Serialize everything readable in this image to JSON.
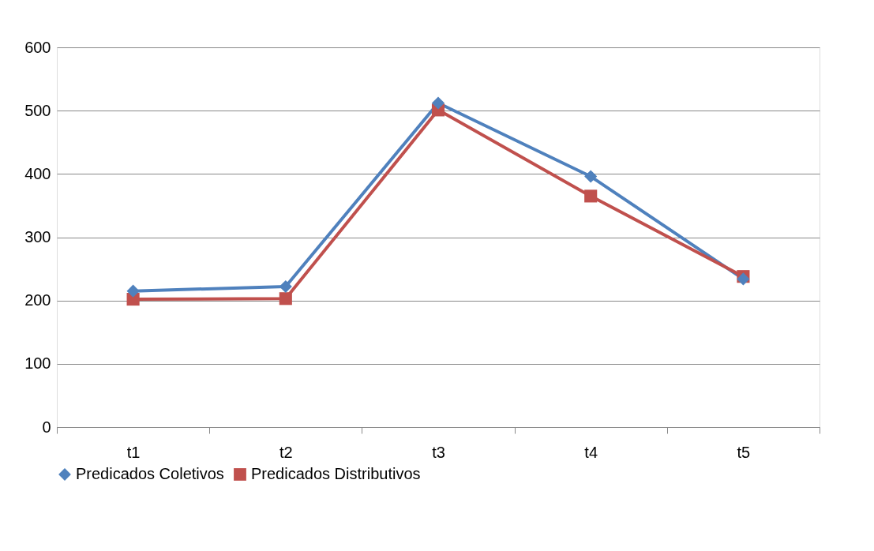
{
  "chart_data": {
    "type": "line",
    "categories": [
      "t1",
      "t2",
      "t3",
      "t4",
      "t5"
    ],
    "series": [
      {
        "name": "Predicados Coletivos",
        "color": "#4f81bd",
        "values": [
          215,
          222,
          512,
          396,
          234
        ],
        "marker": "diamond"
      },
      {
        "name": "Predicados Distributivos",
        "color": "#c0504d",
        "values": [
          202,
          203,
          501,
          365,
          238
        ],
        "marker": "square"
      }
    ],
    "ylim": [
      0,
      600
    ],
    "yticks": [
      0,
      100,
      200,
      300,
      400,
      500,
      600
    ],
    "grid": "y",
    "legend": "bottom",
    "line_style": "solid"
  }
}
